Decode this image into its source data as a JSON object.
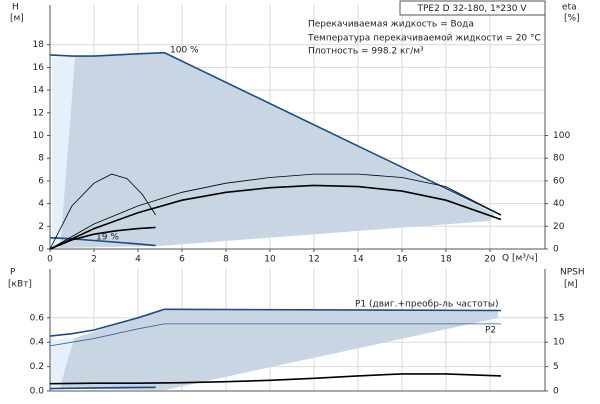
{
  "chart_data": [
    {
      "type": "line",
      "title": "TPE2 D 32-180, 1*230 V",
      "annotations": [
        "Перекачиваемая жидкость = Вода",
        "Температура перекачиваемой жидкости = 20 °C",
        "Плотность = 998.2 кг/м³"
      ],
      "x_label": "Q [м³/ч]",
      "y_label": "H",
      "y_unit": "[м]",
      "y2_label": "eta",
      "y2_unit": "[%]",
      "xlim": [
        0,
        22.5
      ],
      "xticks": [
        0,
        2,
        4,
        6,
        8,
        10,
        12,
        14,
        16,
        18,
        20
      ],
      "ylim": [
        0,
        21.5
      ],
      "yticks": [
        0,
        2,
        4,
        6,
        8,
        10,
        12,
        14,
        16,
        18
      ],
      "y2lim": [
        0,
        215
      ],
      "y2ticks": [
        0,
        20,
        40,
        60,
        80,
        100
      ],
      "grid": true,
      "series": [
        {
          "name": "100 %",
          "color": "#1c4a86",
          "style": "thick",
          "x": [
            0,
            1,
            2,
            3,
            4,
            5.2,
            20.5
          ],
          "values": [
            17.1,
            17.0,
            17.0,
            17.1,
            17.2,
            17.3,
            3.0
          ]
        },
        {
          "name": "19 %",
          "color": "#1c4a86",
          "style": "thick",
          "x": [
            0,
            1,
            2,
            3,
            4,
            4.8
          ],
          "values": [
            1.0,
            0.9,
            0.75,
            0.6,
            0.45,
            0.3
          ]
        },
        {
          "color": "#000000",
          "style": "thin",
          "axis": "y2",
          "x": [
            0,
            2,
            4,
            6,
            8,
            10,
            12,
            14,
            16,
            18,
            20.5
          ],
          "values": [
            0,
            22,
            38,
            50,
            58,
            63,
            66,
            66,
            63,
            55,
            30
          ]
        },
        {
          "color": "#000000",
          "style": "thick",
          "axis": "y2",
          "x": [
            0,
            2,
            4,
            6,
            8,
            10,
            12,
            14,
            16,
            18,
            20.5
          ],
          "values": [
            0,
            18,
            32,
            43,
            50,
            54,
            56,
            55,
            51,
            43,
            26
          ]
        },
        {
          "color": "#000000",
          "style": "thin",
          "axis": "y2",
          "x": [
            0,
            1,
            2,
            2.8,
            3.5,
            4.2,
            4.8
          ],
          "values": [
            0,
            38,
            58,
            66,
            62,
            48,
            30
          ]
        },
        {
          "color": "#000000",
          "style": "thick",
          "axis": "y2",
          "x": [
            0,
            1,
            2,
            3,
            4,
            4.8
          ],
          "values": [
            0,
            8,
            13,
            16,
            18,
            19
          ]
        }
      ]
    },
    {
      "type": "line",
      "y_label": "P",
      "y_unit": "[кВт]",
      "y2_label": "NPSH",
      "y2_unit": "[м]",
      "xlim": [
        0,
        22.5
      ],
      "ylim": [
        0,
        1.0
      ],
      "yticks": [
        {
          "value": 0,
          "label": "0.0"
        },
        0.2,
        0.4,
        0.6
      ],
      "y2lim": [
        0,
        25
      ],
      "y2ticks": [
        0,
        5,
        10,
        15
      ],
      "grid": true,
      "series": [
        {
          "name": "P1 (двиг.+преобр-ль частоты)",
          "color": "#1c4a86",
          "style": "thick",
          "x": [
            0,
            1,
            2,
            3,
            4,
            5.2,
            20.5
          ],
          "values": [
            0.45,
            0.47,
            0.5,
            0.55,
            0.6,
            0.67,
            0.66
          ]
        },
        {
          "name": "P2",
          "color": "#2f5f9a",
          "style": "thin",
          "x": [
            0,
            1,
            2,
            3,
            4,
            5.2,
            20.5
          ],
          "values": [
            0.37,
            0.4,
            0.43,
            0.47,
            0.51,
            0.55,
            0.55
          ]
        },
        {
          "color": "#1c4a86",
          "style": "thick",
          "x": [
            0,
            2,
            4.8
          ],
          "values": [
            0.02,
            0.025,
            0.03
          ]
        },
        {
          "color": "#000000",
          "style": "thick",
          "axis": "y2",
          "x": [
            0,
            2,
            4,
            6,
            8,
            10,
            12,
            14,
            16,
            18,
            20.5
          ],
          "values": [
            1.5,
            1.6,
            1.6,
            1.7,
            1.9,
            2.2,
            2.6,
            3.1,
            3.5,
            3.5,
            3.1
          ]
        }
      ]
    }
  ]
}
